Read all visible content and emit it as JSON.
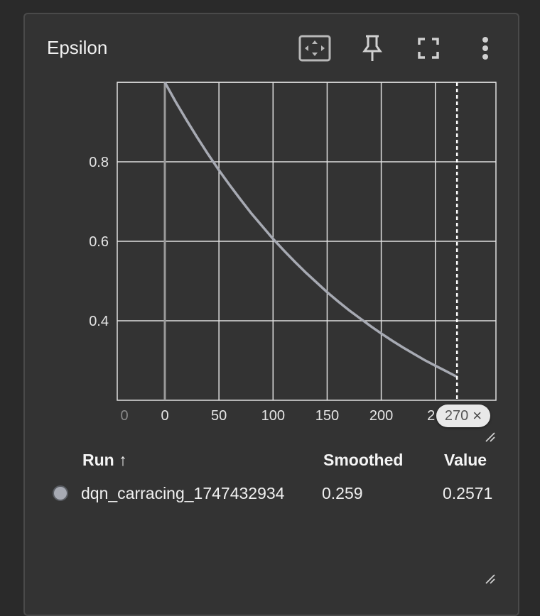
{
  "card": {
    "title": "Epsilon",
    "toolbar": {
      "fit_icon": "fit-to-domain-icon",
      "pin_icon": "pin-icon",
      "fullscreen_icon": "fullscreen-icon",
      "more_icon": "more-vert-icon"
    }
  },
  "chart_data": {
    "type": "line",
    "title": "Epsilon",
    "xlabel": "",
    "ylabel": "",
    "xlim": [
      -44,
      306
    ],
    "ylim": [
      0.2,
      1.0
    ],
    "x_ticks": [
      "0",
      "0",
      "50",
      "100",
      "150",
      "200",
      "2"
    ],
    "y_ticks": [
      "0.8",
      "0.6",
      "0.4"
    ],
    "grid": true,
    "series": [
      {
        "name": "dqn_carracing_1747432934",
        "color": "#a7aab3",
        "x": [
          0,
          10,
          20,
          30,
          40,
          50,
          60,
          70,
          80,
          90,
          100,
          110,
          120,
          130,
          140,
          150,
          160,
          170,
          180,
          190,
          200,
          210,
          220,
          230,
          240,
          250,
          260,
          270
        ],
        "y": [
          1.0,
          0.951,
          0.905,
          0.861,
          0.819,
          0.779,
          0.741,
          0.705,
          0.67,
          0.638,
          0.606,
          0.577,
          0.549,
          0.522,
          0.497,
          0.472,
          0.449,
          0.427,
          0.407,
          0.387,
          0.368,
          0.35,
          0.333,
          0.317,
          0.301,
          0.287,
          0.273,
          0.259
        ]
      }
    ],
    "hover_step": 270,
    "step_chip_label": "270",
    "step_chip_close": "×"
  },
  "table": {
    "headers": {
      "run": "Run ↑",
      "smoothed": "Smoothed",
      "value": "Value"
    },
    "rows": [
      {
        "run": "dqn_carracing_1747432934",
        "smoothed": "0.259",
        "value": "0.2571",
        "color": "#a7aab3"
      }
    ]
  }
}
